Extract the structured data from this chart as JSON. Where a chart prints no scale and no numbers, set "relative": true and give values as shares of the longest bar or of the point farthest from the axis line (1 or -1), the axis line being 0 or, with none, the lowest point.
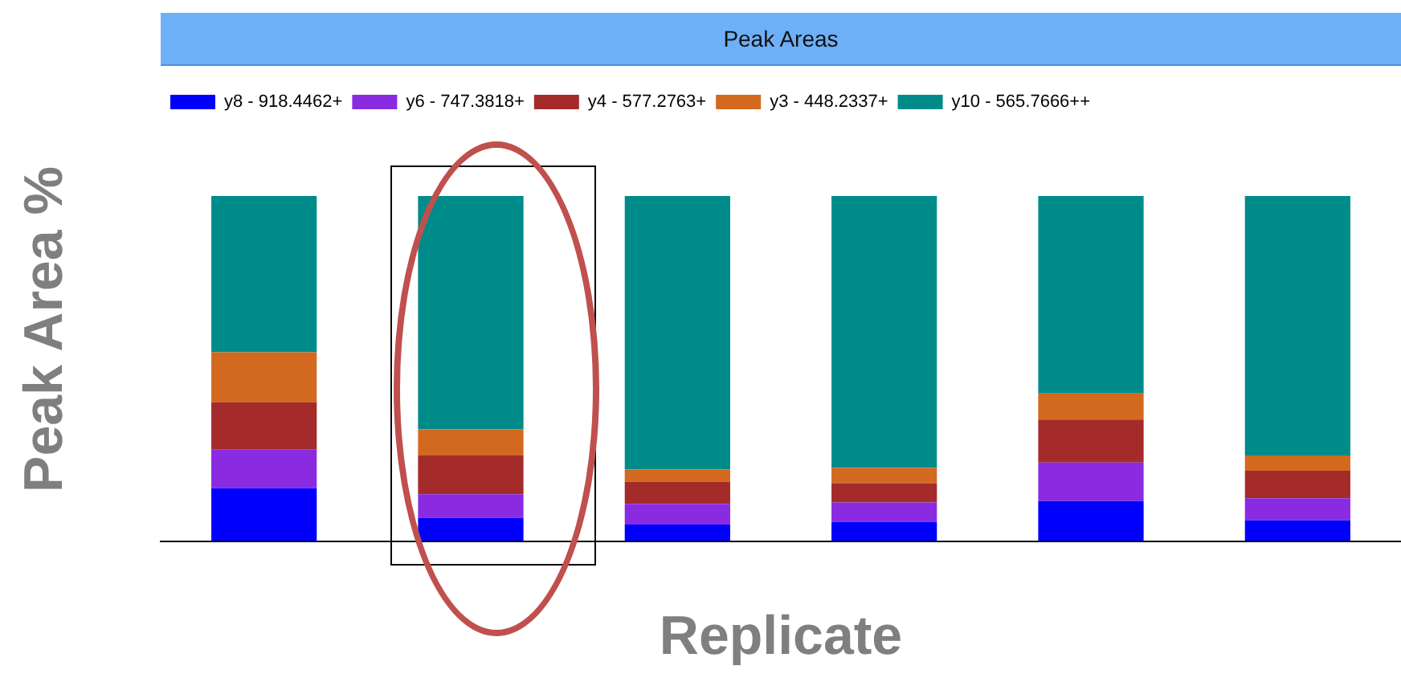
{
  "chart_data": {
    "type": "bar",
    "title": "Peak Areas",
    "xlabel": "Replicate",
    "ylabel": "Peak Area %",
    "categories": [
      null,
      null,
      null,
      null,
      null,
      null
    ],
    "stacked": true,
    "relative": true,
    "grid": false,
    "legend": "top left",
    "series": [
      {
        "name": "y8 - 918.4462+",
        "color": "#0000ff",
        "values": [
          0.153,
          0.068,
          0.048,
          0.056,
          0.116,
          0.06
        ]
      },
      {
        "name": "y6 - 747.3818+",
        "color": "#8a2be2",
        "values": [
          0.112,
          0.068,
          0.06,
          0.056,
          0.112,
          0.064
        ]
      },
      {
        "name": "y4 - 577.2763+",
        "color": "#a52a2a",
        "values": [
          0.137,
          0.112,
          0.064,
          0.056,
          0.124,
          0.08
        ]
      },
      {
        "name": "y3 - 448.2337+",
        "color": "#d2691e",
        "values": [
          0.145,
          0.076,
          0.036,
          0.044,
          0.076,
          0.044
        ]
      },
      {
        "name": "y10 - 565.7666++",
        "color": "#008b8b",
        "values": [
          0.453,
          0.676,
          0.792,
          0.788,
          0.572,
          0.752
        ]
      }
    ]
  }
}
